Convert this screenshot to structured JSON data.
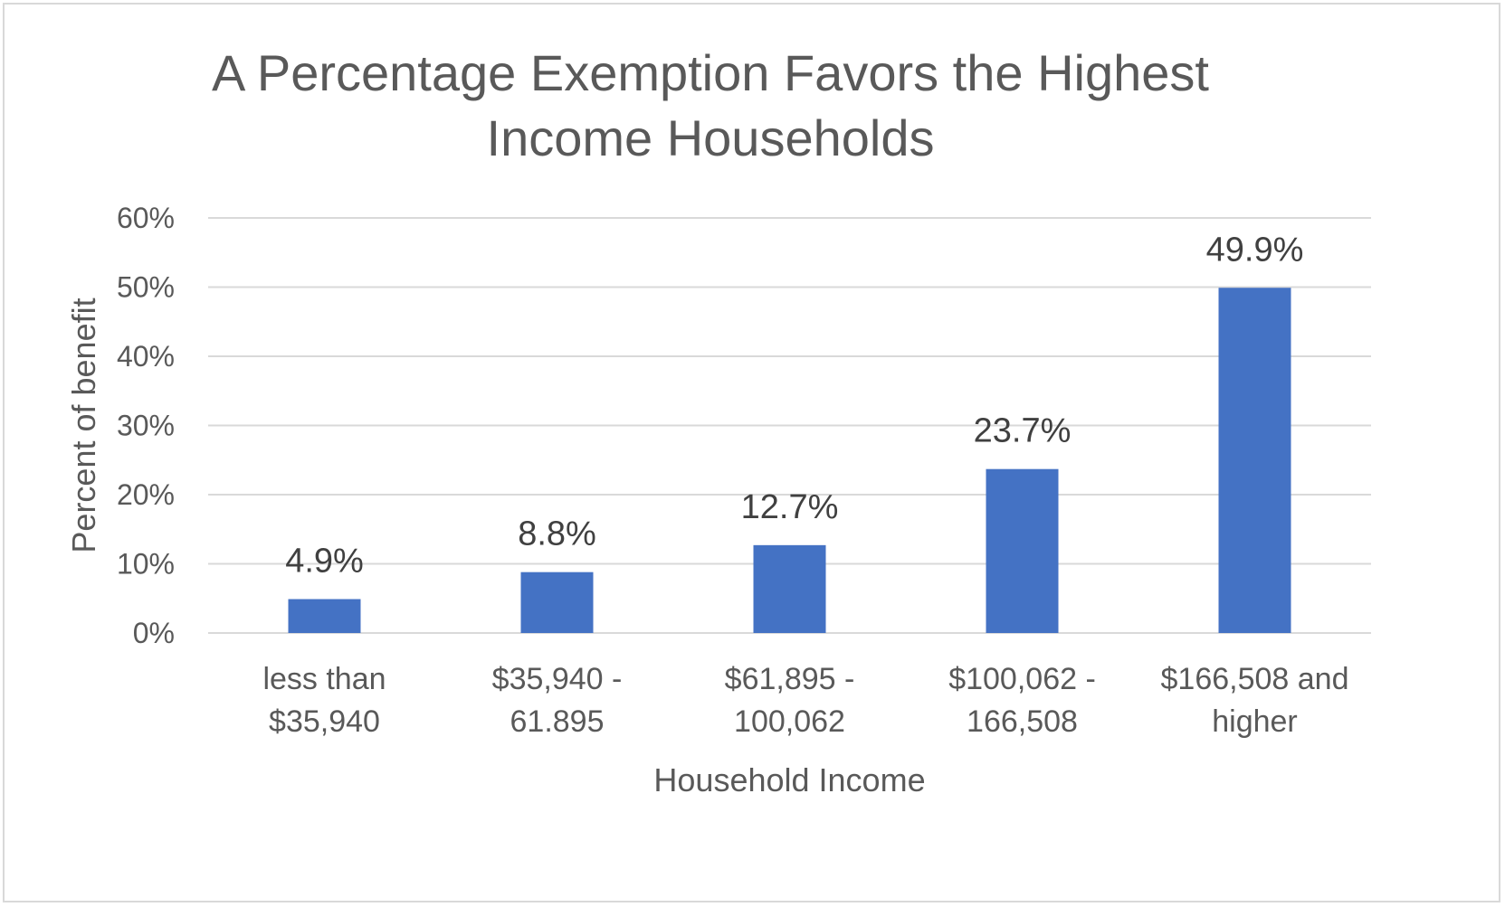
{
  "chart_data": {
    "type": "bar",
    "title_lines": [
      "A Percentage Exemption Favors the Highest",
      "Income Households"
    ],
    "xlabel": "Household Income",
    "ylabel": "Percent of benefit",
    "categories": [
      [
        "less than",
        "$35,940"
      ],
      [
        "$35,940 -",
        "61.895"
      ],
      [
        "$61,895 -",
        "100,062"
      ],
      [
        "$100,062 -",
        "166,508"
      ],
      [
        "$166,508 and",
        "higher"
      ]
    ],
    "values": [
      4.9,
      8.8,
      12.7,
      23.7,
      49.9
    ],
    "data_labels": [
      "4.9%",
      "8.8%",
      "12.7%",
      "23.7%",
      "49.9%"
    ],
    "y_ticks": [
      "0%",
      "10%",
      "20%",
      "30%",
      "40%",
      "50%",
      "60%"
    ],
    "ylim": [
      0,
      60
    ],
    "grid": true,
    "legend": "none",
    "bar_color": "#4472c4"
  }
}
